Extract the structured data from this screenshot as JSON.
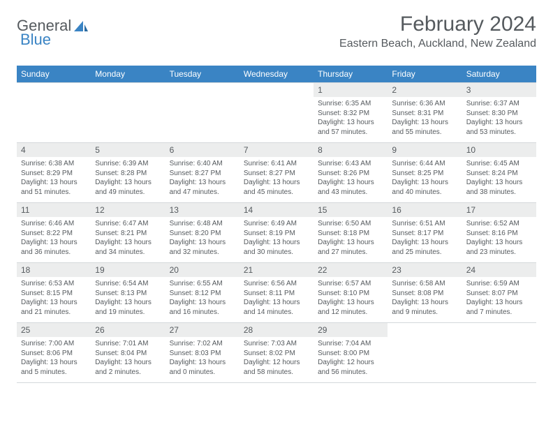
{
  "logo": {
    "text1": "General",
    "text2": "Blue"
  },
  "title": "February 2024",
  "location": "Eastern Beach, Auckland, New Zealand",
  "colors": {
    "header_bg": "#3a84c4",
    "header_fg": "#ffffff",
    "daynum_bg": "#eceded",
    "text": "#555a5e",
    "border": "#d4d8db",
    "page_bg": "#ffffff"
  },
  "day_headers": [
    "Sunday",
    "Monday",
    "Tuesday",
    "Wednesday",
    "Thursday",
    "Friday",
    "Saturday"
  ],
  "weeks": [
    [
      null,
      null,
      null,
      null,
      {
        "n": "1",
        "sunrise": "6:35 AM",
        "sunset": "8:32 PM",
        "daylight": "13 hours and 57 minutes."
      },
      {
        "n": "2",
        "sunrise": "6:36 AM",
        "sunset": "8:31 PM",
        "daylight": "13 hours and 55 minutes."
      },
      {
        "n": "3",
        "sunrise": "6:37 AM",
        "sunset": "8:30 PM",
        "daylight": "13 hours and 53 minutes."
      }
    ],
    [
      {
        "n": "4",
        "sunrise": "6:38 AM",
        "sunset": "8:29 PM",
        "daylight": "13 hours and 51 minutes."
      },
      {
        "n": "5",
        "sunrise": "6:39 AM",
        "sunset": "8:28 PM",
        "daylight": "13 hours and 49 minutes."
      },
      {
        "n": "6",
        "sunrise": "6:40 AM",
        "sunset": "8:27 PM",
        "daylight": "13 hours and 47 minutes."
      },
      {
        "n": "7",
        "sunrise": "6:41 AM",
        "sunset": "8:27 PM",
        "daylight": "13 hours and 45 minutes."
      },
      {
        "n": "8",
        "sunrise": "6:43 AM",
        "sunset": "8:26 PM",
        "daylight": "13 hours and 43 minutes."
      },
      {
        "n": "9",
        "sunrise": "6:44 AM",
        "sunset": "8:25 PM",
        "daylight": "13 hours and 40 minutes."
      },
      {
        "n": "10",
        "sunrise": "6:45 AM",
        "sunset": "8:24 PM",
        "daylight": "13 hours and 38 minutes."
      }
    ],
    [
      {
        "n": "11",
        "sunrise": "6:46 AM",
        "sunset": "8:22 PM",
        "daylight": "13 hours and 36 minutes."
      },
      {
        "n": "12",
        "sunrise": "6:47 AM",
        "sunset": "8:21 PM",
        "daylight": "13 hours and 34 minutes."
      },
      {
        "n": "13",
        "sunrise": "6:48 AM",
        "sunset": "8:20 PM",
        "daylight": "13 hours and 32 minutes."
      },
      {
        "n": "14",
        "sunrise": "6:49 AM",
        "sunset": "8:19 PM",
        "daylight": "13 hours and 30 minutes."
      },
      {
        "n": "15",
        "sunrise": "6:50 AM",
        "sunset": "8:18 PM",
        "daylight": "13 hours and 27 minutes."
      },
      {
        "n": "16",
        "sunrise": "6:51 AM",
        "sunset": "8:17 PM",
        "daylight": "13 hours and 25 minutes."
      },
      {
        "n": "17",
        "sunrise": "6:52 AM",
        "sunset": "8:16 PM",
        "daylight": "13 hours and 23 minutes."
      }
    ],
    [
      {
        "n": "18",
        "sunrise": "6:53 AM",
        "sunset": "8:15 PM",
        "daylight": "13 hours and 21 minutes."
      },
      {
        "n": "19",
        "sunrise": "6:54 AM",
        "sunset": "8:13 PM",
        "daylight": "13 hours and 19 minutes."
      },
      {
        "n": "20",
        "sunrise": "6:55 AM",
        "sunset": "8:12 PM",
        "daylight": "13 hours and 16 minutes."
      },
      {
        "n": "21",
        "sunrise": "6:56 AM",
        "sunset": "8:11 PM",
        "daylight": "13 hours and 14 minutes."
      },
      {
        "n": "22",
        "sunrise": "6:57 AM",
        "sunset": "8:10 PM",
        "daylight": "13 hours and 12 minutes."
      },
      {
        "n": "23",
        "sunrise": "6:58 AM",
        "sunset": "8:08 PM",
        "daylight": "13 hours and 9 minutes."
      },
      {
        "n": "24",
        "sunrise": "6:59 AM",
        "sunset": "8:07 PM",
        "daylight": "13 hours and 7 minutes."
      }
    ],
    [
      {
        "n": "25",
        "sunrise": "7:00 AM",
        "sunset": "8:06 PM",
        "daylight": "13 hours and 5 minutes."
      },
      {
        "n": "26",
        "sunrise": "7:01 AM",
        "sunset": "8:04 PM",
        "daylight": "13 hours and 2 minutes."
      },
      {
        "n": "27",
        "sunrise": "7:02 AM",
        "sunset": "8:03 PM",
        "daylight": "13 hours and 0 minutes."
      },
      {
        "n": "28",
        "sunrise": "7:03 AM",
        "sunset": "8:02 PM",
        "daylight": "12 hours and 58 minutes."
      },
      {
        "n": "29",
        "sunrise": "7:04 AM",
        "sunset": "8:00 PM",
        "daylight": "12 hours and 56 minutes."
      },
      null,
      null
    ]
  ],
  "labels": {
    "sunrise": "Sunrise:",
    "sunset": "Sunset:",
    "daylight": "Daylight:"
  }
}
